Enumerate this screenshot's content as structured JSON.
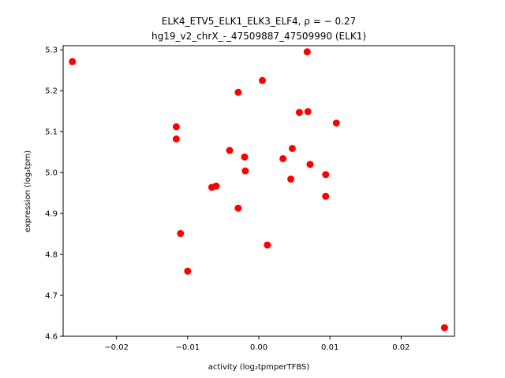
{
  "chart_data": {
    "type": "scatter",
    "title_line1": "ELK4_ETV5_ELK1_ELK3_ELF4, ρ = − 0.27",
    "title_line2": "hg19_v2_chrX_-_47509887_47509990 (ELK1)",
    "xlabel": "activity (log₂tpmperTFBS)",
    "ylabel": "expression (log₂tpm)",
    "xlim": [
      -0.0275,
      0.0275
    ],
    "ylim": [
      4.6,
      5.31
    ],
    "xticks": [
      -0.02,
      -0.01,
      0.0,
      0.01,
      0.02
    ],
    "xtick_labels": [
      "−0.02",
      "−0.01",
      "0.00",
      "0.01",
      "0.02"
    ],
    "yticks": [
      4.6,
      4.7,
      4.8,
      4.9,
      5.0,
      5.1,
      5.2,
      5.3
    ],
    "ytick_labels": [
      "4.6",
      "4.7",
      "4.8",
      "4.9",
      "5.0",
      "5.1",
      "5.2",
      "5.3"
    ],
    "marker_color": "#ff0000",
    "grid": false,
    "points": [
      {
        "x": -0.0262,
        "y": 5.271
      },
      {
        "x": -0.0116,
        "y": 5.112
      },
      {
        "x": -0.0116,
        "y": 5.082
      },
      {
        "x": -0.011,
        "y": 4.851
      },
      {
        "x": -0.01,
        "y": 4.759
      },
      {
        "x": -0.0066,
        "y": 4.964
      },
      {
        "x": -0.006,
        "y": 4.967
      },
      {
        "x": -0.0041,
        "y": 5.054
      },
      {
        "x": -0.0029,
        "y": 5.196
      },
      {
        "x": -0.0029,
        "y": 4.913
      },
      {
        "x": -0.002,
        "y": 5.038
      },
      {
        "x": -0.0019,
        "y": 5.004
      },
      {
        "x": 0.0005,
        "y": 5.225
      },
      {
        "x": 0.0012,
        "y": 4.823
      },
      {
        "x": 0.0034,
        "y": 5.034
      },
      {
        "x": 0.0045,
        "y": 4.984
      },
      {
        "x": 0.0047,
        "y": 5.059
      },
      {
        "x": 0.0057,
        "y": 5.147
      },
      {
        "x": 0.0068,
        "y": 5.295
      },
      {
        "x": 0.0069,
        "y": 5.149
      },
      {
        "x": 0.0072,
        "y": 5.02
      },
      {
        "x": 0.0094,
        "y": 4.995
      },
      {
        "x": 0.0094,
        "y": 4.942
      },
      {
        "x": 0.0109,
        "y": 5.121
      },
      {
        "x": 0.0261,
        "y": 4.621
      }
    ]
  }
}
